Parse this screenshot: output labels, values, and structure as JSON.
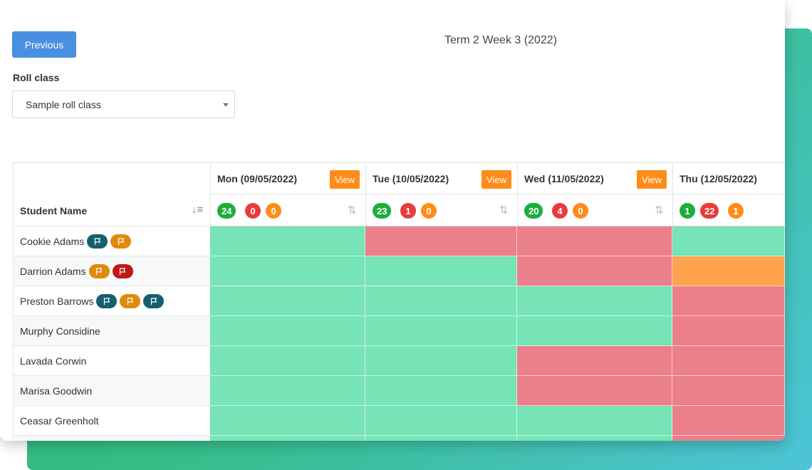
{
  "header": {
    "previous_label": "Previous",
    "term_title": "Term 2 Week 3 (2022)"
  },
  "roll_class": {
    "label": "Roll class",
    "selected": "Sample roll class"
  },
  "table": {
    "name_header": "Student Name",
    "view_label": "View",
    "days": [
      {
        "label": "Mon (09/05/2022)",
        "present": "24",
        "absent": "0",
        "late": "0",
        "has_view": true
      },
      {
        "label": "Tue (10/05/2022)",
        "present": "23",
        "absent": "1",
        "late": "0",
        "has_view": true
      },
      {
        "label": "Wed (11/05/2022)",
        "present": "20",
        "absent": "4",
        "late": "0",
        "has_view": true
      },
      {
        "label": "Thu (12/05/2022)",
        "present": "1",
        "absent": "22",
        "late": "1",
        "has_view": false
      }
    ],
    "students": [
      {
        "name": "Cookie Adams",
        "flags": [
          "teal",
          "amber"
        ],
        "status": [
          "present",
          "absent",
          "absent",
          "present"
        ]
      },
      {
        "name": "Darrion Adams",
        "flags": [
          "amber",
          "darkred"
        ],
        "status": [
          "present",
          "present",
          "absent",
          "late"
        ]
      },
      {
        "name": "Preston Barrows",
        "flags": [
          "teal",
          "amber",
          "teal"
        ],
        "status": [
          "present",
          "present",
          "present",
          "absent"
        ]
      },
      {
        "name": "Murphy Considine",
        "flags": [],
        "status": [
          "present",
          "present",
          "present",
          "absent"
        ]
      },
      {
        "name": "Lavada Corwin",
        "flags": [],
        "status": [
          "present",
          "present",
          "absent",
          "absent"
        ]
      },
      {
        "name": "Marisa Goodwin",
        "flags": [],
        "status": [
          "present",
          "present",
          "absent",
          "absent"
        ]
      },
      {
        "name": "Ceasar Greenholt",
        "flags": [],
        "status": [
          "present",
          "present",
          "present",
          "absent"
        ]
      },
      {
        "name": "",
        "flags": [],
        "status": [
          "present",
          "present",
          "present",
          "absent"
        ]
      }
    ]
  },
  "colors": {
    "present": "#76e4b7",
    "absent": "#ec808a",
    "late": "#ffa24d",
    "accent": "#4a90e2",
    "view": "#ff8c1a"
  },
  "icons": {
    "flag": "flag-icon",
    "sort": "sort-icon"
  }
}
